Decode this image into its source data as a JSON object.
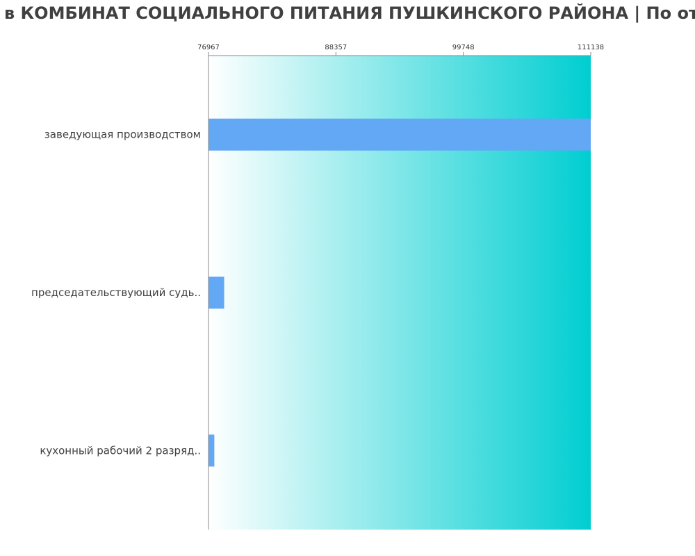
{
  "chart_data": {
    "type": "bar",
    "orientation": "horizontal",
    "title": "в КОМБИНАТ СОЦИАЛЬНОГО ПИТАНИЯ ПУШКИНСКОГО РАЙОНА | По от",
    "categories": [
      "заведующая производством",
      "председательствующий судь..",
      "кухонный рабочий 2 разряд.."
    ],
    "values": [
      111138,
      78367,
      77487
    ],
    "xlim": [
      76967,
      111138
    ],
    "xticks": [
      76967,
      88357,
      99748,
      111138
    ],
    "xtick_labels": [
      "76967",
      "88357",
      "99748",
      "111138"
    ],
    "xaxis_position": "top",
    "grid": false,
    "legend": "none"
  },
  "colors": {
    "bar": "#63a8f4",
    "background_start": "#ffffff",
    "background_end": "#00ced1",
    "axis": "#888888",
    "title": "#404040"
  }
}
